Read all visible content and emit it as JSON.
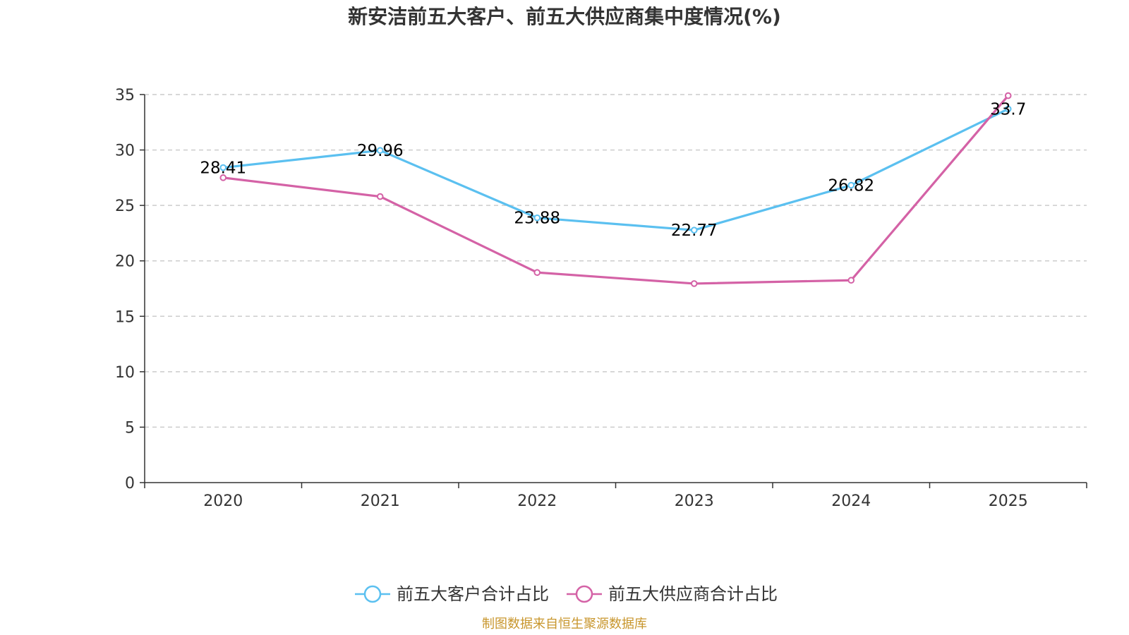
{
  "chart_data": {
    "type": "line",
    "title": "新安洁前五大客户、前五大供应商集中度情况(%)",
    "categories": [
      "2020",
      "2021",
      "2022",
      "2023",
      "2024",
      "2025"
    ],
    "ylim": [
      0,
      35
    ],
    "yticks": [
      0,
      5,
      10,
      15,
      20,
      25,
      30,
      35
    ],
    "ytick_labels": [
      "0",
      "5",
      "10",
      "15",
      "20",
      "25",
      "30",
      "35"
    ],
    "grid": true,
    "legend_position": "bottom-center",
    "series": [
      {
        "name": "前五大客户合计占比",
        "color": "#5bc0f0",
        "values": [
          28.41,
          29.96,
          23.88,
          22.77,
          26.82,
          33.7
        ],
        "labels": [
          "28.41",
          "29.96",
          "23.88",
          "22.77",
          "26.82",
          "33.7"
        ]
      },
      {
        "name": "前五大供应商合计占比",
        "color": "#d462a6",
        "values": [
          27.5,
          25.8,
          18.95,
          17.95,
          18.25,
          34.9
        ]
      }
    ]
  },
  "source_note": "制图数据来自恒生聚源数据库"
}
